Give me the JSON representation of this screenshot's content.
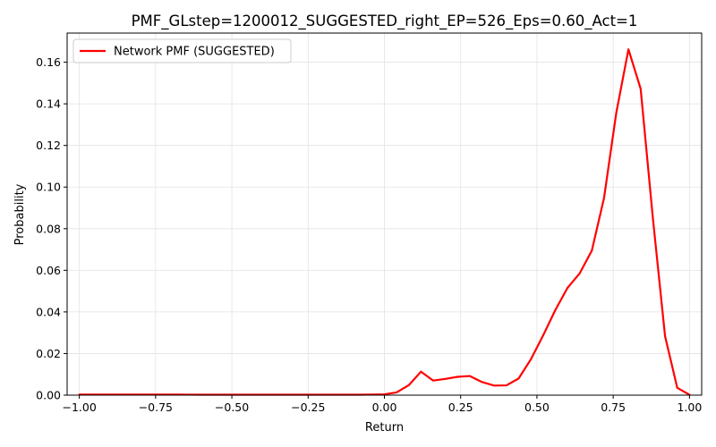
{
  "chart_data": {
    "type": "line",
    "title": "PMF_GLstep=1200012_SUGGESTED_right_EP=526_Eps=0.60_Act=1",
    "xlabel": "Return",
    "ylabel": "Probability",
    "xlim": [
      -1.04,
      1.04
    ],
    "ylim": [
      0,
      0.174
    ],
    "xticks": [
      -1.0,
      -0.75,
      -0.5,
      -0.25,
      0.0,
      0.25,
      0.5,
      0.75,
      1.0
    ],
    "xtick_labels": [
      "−1.00",
      "−0.75",
      "−0.50",
      "−0.25",
      "0.00",
      "0.25",
      "0.50",
      "0.75",
      "1.00"
    ],
    "yticks": [
      0.0,
      0.02,
      0.04,
      0.06,
      0.08,
      0.1,
      0.12,
      0.14,
      0.16
    ],
    "ytick_labels": [
      "0.00",
      "0.02",
      "0.04",
      "0.06",
      "0.08",
      "0.10",
      "0.12",
      "0.14",
      "0.16"
    ],
    "grid": true,
    "legend_position": "upper-left",
    "series": [
      {
        "name": "Network PMF (SUGGESTED)",
        "color": "#ff0000",
        "x": [
          -1.0,
          -0.96,
          -0.92,
          -0.88,
          -0.84,
          -0.8,
          -0.76,
          -0.72,
          -0.68,
          -0.64,
          -0.6,
          -0.56,
          -0.52,
          -0.48,
          -0.44,
          -0.4,
          -0.36,
          -0.32,
          -0.28,
          -0.24,
          -0.2,
          -0.16,
          -0.12,
          -0.08,
          -0.04,
          0.0,
          0.04,
          0.08,
          0.12,
          0.16,
          0.2,
          0.24,
          0.28,
          0.32,
          0.36,
          0.4,
          0.44,
          0.48,
          0.52,
          0.56,
          0.6,
          0.64,
          0.68,
          0.72,
          0.76,
          0.8,
          0.84,
          0.88,
          0.92,
          0.96,
          1.0
        ],
        "y": [
          0.0003,
          0.0003,
          0.0003,
          0.0003,
          0.0003,
          0.0003,
          0.0003,
          0.0003,
          0.0003,
          0.00025,
          0.0002,
          0.0002,
          0.0002,
          0.0002,
          0.0002,
          0.0002,
          0.0002,
          0.0002,
          0.0002,
          0.0002,
          0.0002,
          0.0002,
          0.0002,
          0.0002,
          0.0003,
          0.0004,
          0.0013,
          0.0048,
          0.0113,
          0.007,
          0.0078,
          0.0088,
          0.0092,
          0.0063,
          0.0046,
          0.0047,
          0.008,
          0.0172,
          0.0286,
          0.0408,
          0.0515,
          0.0585,
          0.0695,
          0.0948,
          0.1356,
          0.1662,
          0.1472,
          0.0851,
          0.0283,
          0.0035,
          0.0002
        ]
      }
    ]
  }
}
